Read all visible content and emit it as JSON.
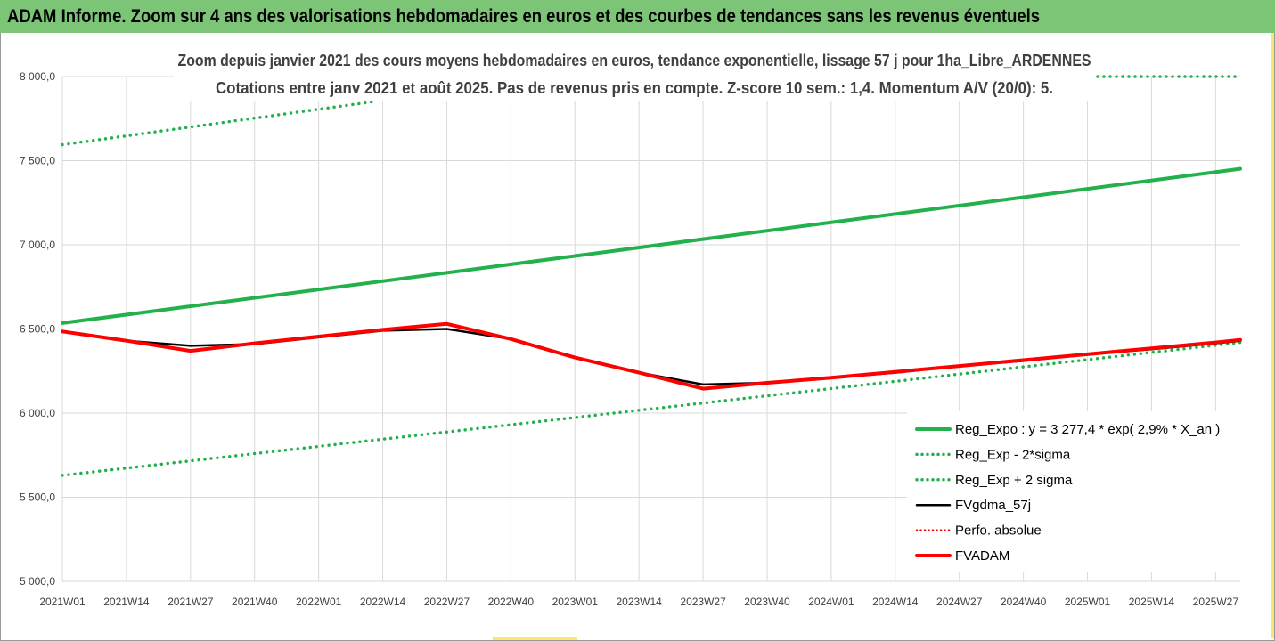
{
  "header": {
    "title": "ADAM Informe. Zoom sur 4 ans des valorisations hebdomadaires en euros et des courbes de tendances sans les revenus éventuels"
  },
  "colors": {
    "header_bg": "#7cc576",
    "green_series": "#22b14c",
    "black_series": "#000000",
    "red_series": "#ff0000",
    "gridline": "#d9d9d9"
  },
  "chart_data": {
    "type": "line",
    "title_line1": "Zoom depuis janvier 2021 des cours moyens hebdomadaires en euros, tendance exponentielle, lissage 57 j pour 1ha_Libre_ARDENNES",
    "title_line2": "Cotations entre janv 2021 et août 2025.  Pas de revenus pris en compte. Z-score 10 sem.: 1,4. Momentum A/V (20/0): 5.",
    "ylim": [
      5000,
      8000
    ],
    "y_ticks": [
      5000,
      5500,
      6000,
      6500,
      7000,
      7500,
      8000
    ],
    "y_tick_labels": [
      "5 000,0",
      "5 500,0",
      "6 000,0",
      "6 500,0",
      "7 000,0",
      "7 500,0",
      "8 000,0"
    ],
    "x_tick_labels": [
      "2021W01",
      "2021W14",
      "2021W27",
      "2021W40",
      "2022W01",
      "2022W14",
      "2022W27",
      "2022W40",
      "2023W01",
      "2023W14",
      "2023W27",
      "2023W40",
      "2024W01",
      "2024W14",
      "2024W27",
      "2024W40",
      "2025W01",
      "2025W14",
      "2025W27"
    ],
    "grid": true,
    "legend_position": "bottom-right",
    "x_week_label_points": [
      "2021W01",
      "2021W14",
      "2021W27",
      "2021W40",
      "2022W01",
      "2022W14",
      "2022W27",
      "2022W40",
      "2023W01",
      "2023W14",
      "2023W27",
      "2023W40",
      "2024W01",
      "2024W14",
      "2024W27",
      "2024W40",
      "2025W01",
      "2025W14",
      "2025W27",
      "2025W32"
    ],
    "series": [
      {
        "name": "Reg_Expo : y = 3 277,4 * exp( 2,9% *  X_an )",
        "style": "solid-thick",
        "color": "#22b14c",
        "x": [
          "2021W01",
          "2025W32"
        ],
        "values": [
          6535,
          7452
        ]
      },
      {
        "name": "Reg_Exp - 2*sigma",
        "style": "dotted",
        "color": "#22b14c",
        "x": [
          "2021W01",
          "2025W32"
        ],
        "values": [
          5630,
          6420
        ]
      },
      {
        "name": "Reg_Exp + 2 sigma",
        "style": "dotted",
        "color": "#22b14c",
        "x": [
          "2021W01",
          "2025W32"
        ],
        "values": [
          7595,
          8000
        ]
      },
      {
        "name": "FVgdma_57j",
        "style": "solid",
        "color": "#000000",
        "x": [
          "2021W01",
          "2021W14",
          "2021W27",
          "2021W40",
          "2022W01",
          "2022W14",
          "2022W27",
          "2022W40",
          "2023W01",
          "2023W14",
          "2023W27",
          "2023W40",
          "2024W01",
          "2024W14",
          "2024W27",
          "2024W40",
          "2025W01",
          "2025W14",
          "2025W27",
          "2025W32"
        ],
        "values": [
          6485,
          6430,
          6400,
          6410,
          6450,
          6490,
          6500,
          6440,
          6330,
          6240,
          6170,
          6180,
          6210,
          6240,
          6280,
          6310,
          6350,
          6380,
          6415,
          6430
        ]
      },
      {
        "name": "Perfo. absolue",
        "style": "dotted",
        "color": "#ff0000",
        "x": [],
        "values": []
      },
      {
        "name": "FVADAM",
        "style": "solid-thick",
        "color": "#ff0000",
        "x": [
          "2021W01",
          "2021W14",
          "2021W27",
          "2021W40",
          "2022W01",
          "2022W14",
          "2022W27",
          "2022W40",
          "2023W01",
          "2023W14",
          "2023W27",
          "2023W40",
          "2024W01",
          "2024W14",
          "2024W27",
          "2024W40",
          "2025W01",
          "2025W14",
          "2025W27",
          "2025W32"
        ],
        "values": [
          6485,
          6430,
          6370,
          6415,
          6455,
          6495,
          6530,
          6440,
          6330,
          6240,
          6145,
          6180,
          6210,
          6245,
          6280,
          6315,
          6350,
          6385,
          6420,
          6435
        ]
      }
    ]
  }
}
